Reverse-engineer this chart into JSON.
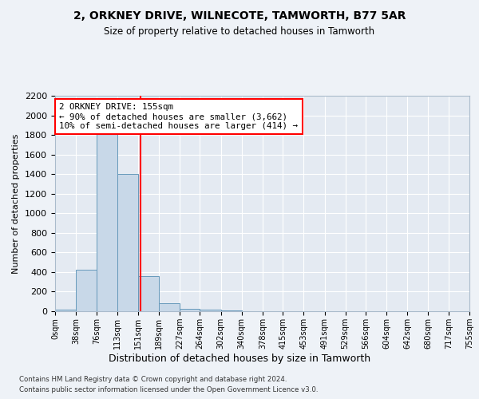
{
  "title1": "2, ORKNEY DRIVE, WILNECOTE, TAMWORTH, B77 5AR",
  "title2": "Size of property relative to detached houses in Tamworth",
  "xlabel": "Distribution of detached houses by size in Tamworth",
  "ylabel": "Number of detached properties",
  "bin_edges": [
    0,
    38,
    76,
    113,
    151,
    189,
    227,
    264,
    302,
    340,
    378,
    415,
    453,
    491,
    529,
    566,
    604,
    642,
    680,
    717,
    755
  ],
  "bar_heights": [
    15,
    425,
    1820,
    1400,
    355,
    80,
    28,
    20,
    5,
    0,
    0,
    0,
    0,
    0,
    0,
    0,
    0,
    0,
    0,
    0
  ],
  "bar_color": "#c8d8e8",
  "bar_edge_color": "#6699bb",
  "ylim": [
    0,
    2200
  ],
  "yticks": [
    0,
    200,
    400,
    600,
    800,
    1000,
    1200,
    1400,
    1600,
    1800,
    2000,
    2200
  ],
  "red_line_x": 155,
  "annotation_text": "2 ORKNEY DRIVE: 155sqm\n← 90% of detached houses are smaller (3,662)\n10% of semi-detached houses are larger (414) →",
  "annotation_box_color": "white",
  "annotation_box_edge_color": "red",
  "footnote1": "Contains HM Land Registry data © Crown copyright and database right 2024.",
  "footnote2": "Contains public sector information licensed under the Open Government Licence v3.0.",
  "bg_color": "#eef2f7",
  "plot_bg_color": "#e4eaf2",
  "grid_color": "white"
}
